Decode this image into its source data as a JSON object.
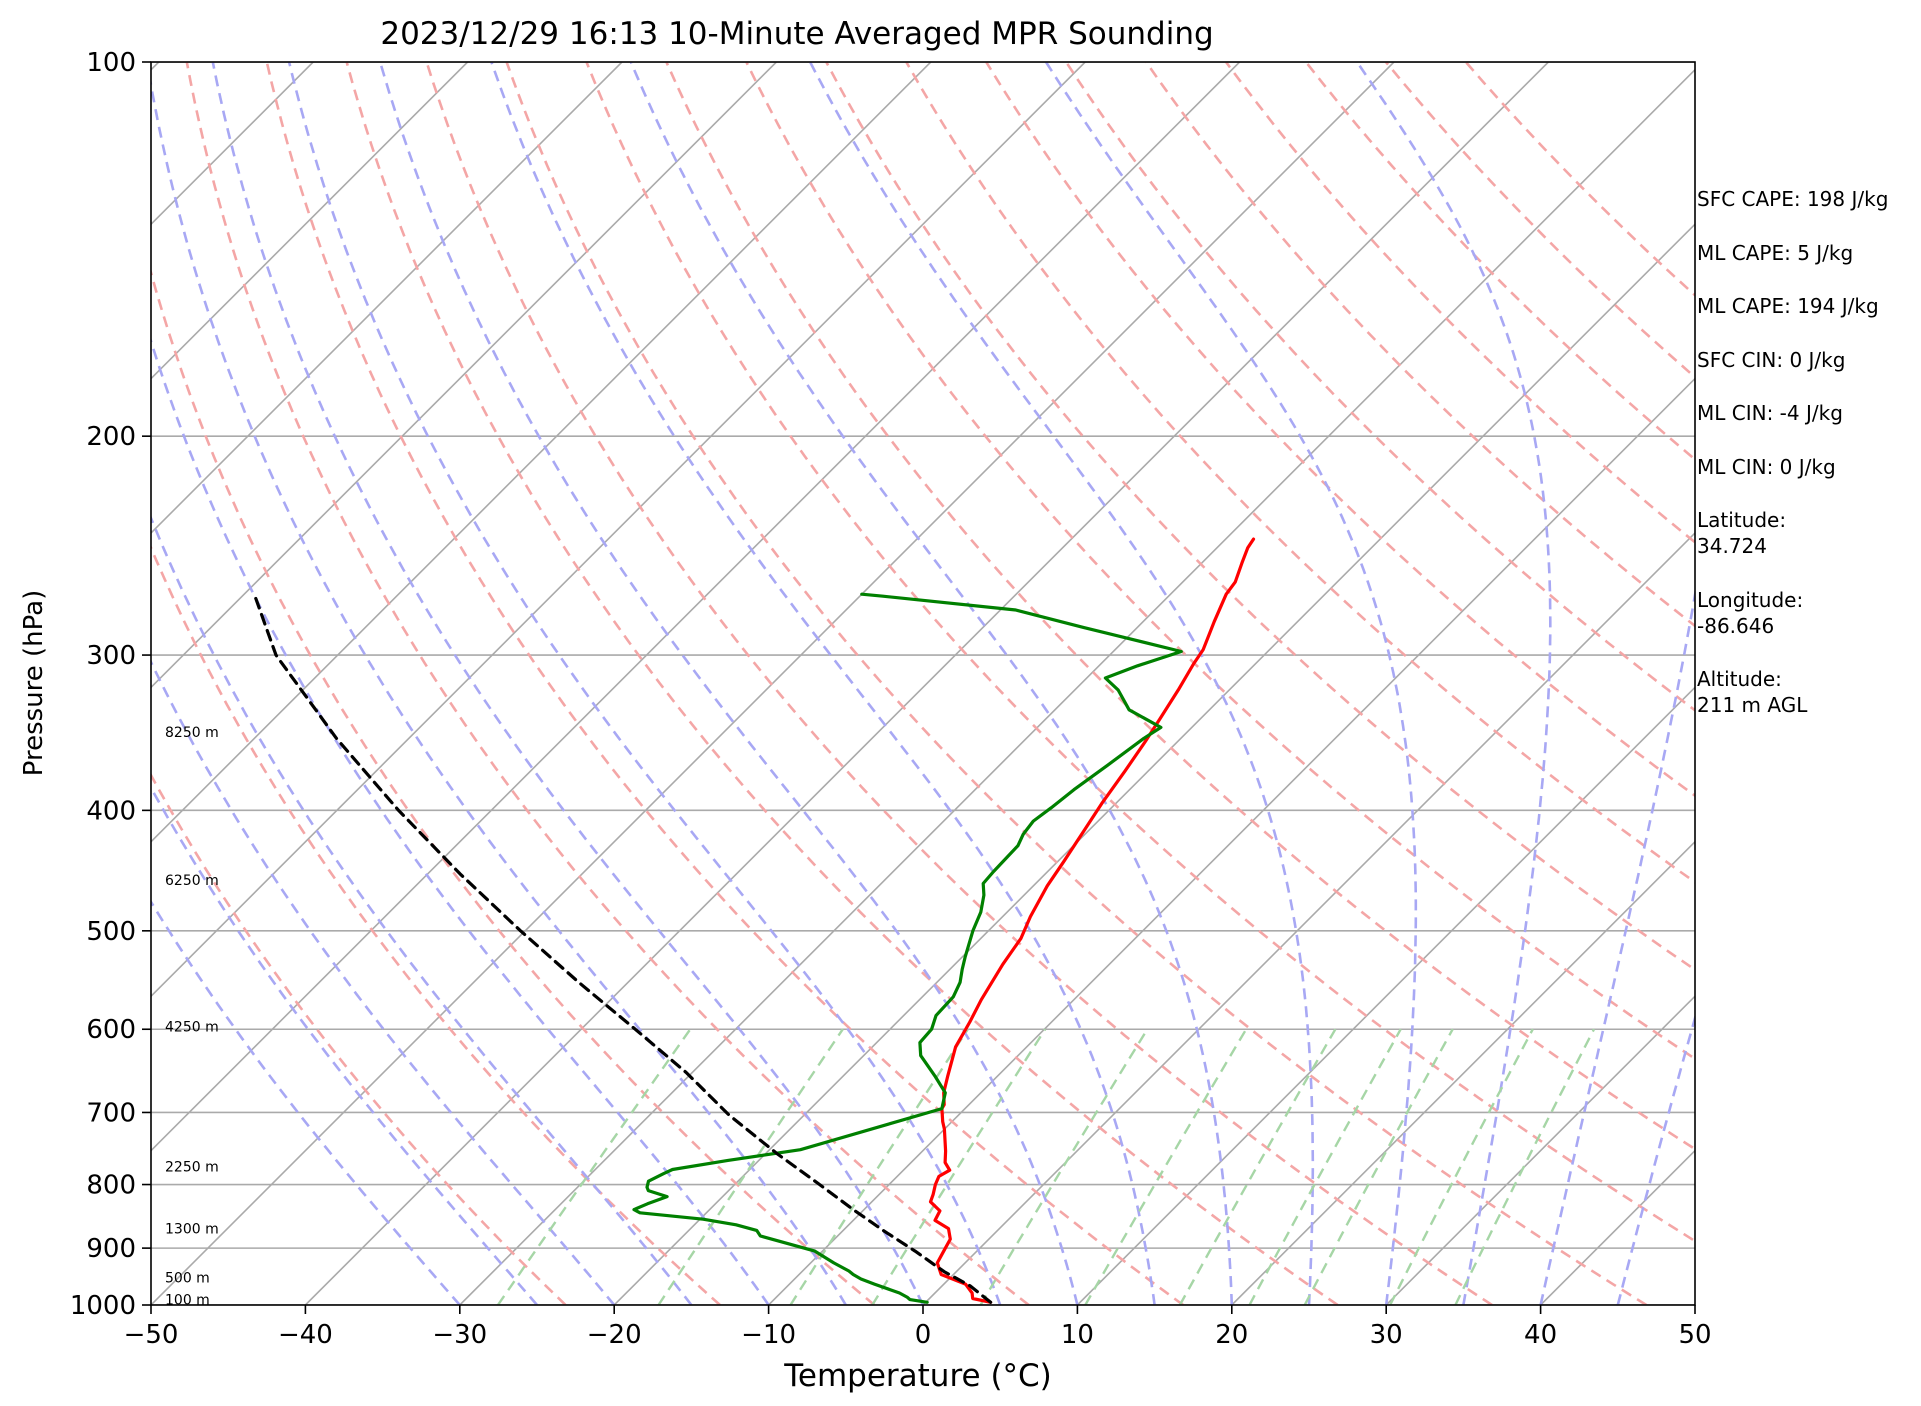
{
  "chart_data": {
    "type": "line",
    "title": "2023/12/29 16:13 10-Minute Averaged MPR Sounding",
    "xlabel": "Temperature (°C)",
    "ylabel": "Pressure (hPa)",
    "xlim": [
      -50,
      50
    ],
    "ylim_pressure_hpa": [
      1000,
      100
    ],
    "y_scale": "log",
    "skew": "skew-T",
    "grid": true,
    "x_ticks": [
      -50,
      -40,
      -30,
      -20,
      -10,
      0,
      10,
      20,
      30,
      40,
      50
    ],
    "x_tick_labels": [
      "−50",
      "−40",
      "−30",
      "−20",
      "−10",
      "0",
      "10",
      "20",
      "30",
      "40",
      "50"
    ],
    "y_ticks": [
      1000,
      900,
      800,
      700,
      600,
      500,
      400,
      300,
      200,
      100
    ],
    "y_tick_labels": [
      "1000",
      "900",
      "800",
      "700",
      "600",
      "500",
      "400",
      "300",
      "200",
      "100"
    ],
    "height_labels": [
      {
        "text": "100 m",
        "p": 990
      },
      {
        "text": "500 m",
        "p": 950
      },
      {
        "text": "1300 m",
        "p": 868
      },
      {
        "text": "2250 m",
        "p": 774
      },
      {
        "text": "4250 m",
        "p": 597
      },
      {
        "text": "6250 m",
        "p": 455
      },
      {
        "text": "8250 m",
        "p": 346
      }
    ],
    "background_lines": {
      "isotherm_color": "#aaaaaa",
      "dry_adiabat_color": "#f4a6a6",
      "moist_adiabat_color": "#a8a8f4",
      "mixing_ratio_color": "#a6d6a6",
      "dry_adiabat_theta_K": [
        250,
        260,
        270,
        280,
        290,
        300,
        310,
        320,
        330,
        340,
        350,
        360,
        370,
        380,
        390,
        400,
        410,
        420,
        430,
        440
      ],
      "moist_adiabat_start_C": [
        -30,
        -25,
        -20,
        -15,
        -10,
        -5,
        0,
        5,
        10,
        15,
        20,
        25,
        30,
        35,
        40,
        45
      ],
      "mixing_ratio_gkg": [
        0.4,
        1,
        2,
        3,
        5,
        8,
        12,
        16,
        20,
        28,
        36
      ]
    },
    "series": [
      {
        "color": "#ff0000",
        "points": [
          [
            4.2,
            995
          ],
          [
            2.8,
            988
          ],
          [
            2.4,
            978
          ],
          [
            1.4,
            962
          ],
          [
            -0.8,
            945
          ],
          [
            -1.8,
            925
          ],
          [
            -2.2,
            902
          ],
          [
            -2.5,
            885
          ],
          [
            -3.3,
            868
          ],
          [
            -4.7,
            855
          ],
          [
            -5.0,
            840
          ],
          [
            -6.2,
            826
          ],
          [
            -6.5,
            815
          ],
          [
            -7.0,
            800
          ],
          [
            -7.3,
            788
          ],
          [
            -7.0,
            779
          ],
          [
            -7.8,
            768
          ],
          [
            -8.5,
            752
          ],
          [
            -10.0,
            722
          ],
          [
            -10.6,
            712
          ],
          [
            -11.5,
            695
          ],
          [
            -11.6,
            690
          ],
          [
            -12.4,
            675
          ],
          [
            -13.2,
            655
          ],
          [
            -14.6,
            620
          ],
          [
            -15.3,
            592
          ],
          [
            -16.0,
            568
          ],
          [
            -16.9,
            532
          ],
          [
            -17.4,
            507
          ],
          [
            -18.2,
            487
          ],
          [
            -19.1,
            460
          ],
          [
            -19.6,
            440
          ],
          [
            -20.3,
            415
          ],
          [
            -20.9,
            395
          ],
          [
            -21.5,
            372
          ],
          [
            -22.1,
            352
          ],
          [
            -22.6,
            338
          ],
          [
            -23.3,
            320
          ],
          [
            -24.0,
            305
          ],
          [
            -24.3,
            297
          ],
          [
            -25.4,
            282
          ],
          [
            -26.4,
            268
          ],
          [
            -26.6,
            262
          ],
          [
            -27.4,
            253
          ],
          [
            -28.0,
            246
          ],
          [
            -28.2,
            242
          ]
        ]
      },
      {
        "color": "#008000",
        "points": [
          [
            0.1,
            995
          ],
          [
            -1.2,
            990
          ],
          [
            -1.5,
            986
          ],
          [
            -2.3,
            978
          ],
          [
            -4.5,
            962
          ],
          [
            -5.7,
            953
          ],
          [
            -6.5,
            945
          ],
          [
            -7.0,
            939
          ],
          [
            -8.5,
            925
          ],
          [
            -10.5,
            905
          ],
          [
            -15.0,
            880
          ],
          [
            -15.6,
            871
          ],
          [
            -17.3,
            862
          ],
          [
            -19.8,
            853
          ],
          [
            -24.3,
            843
          ],
          [
            -24.9,
            838
          ],
          [
            -24.4,
            829
          ],
          [
            -23.6,
            818
          ],
          [
            -25.2,
            809
          ],
          [
            -25.5,
            804
          ],
          [
            -25.8,
            795
          ],
          [
            -25.3,
            784
          ],
          [
            -25.0,
            778
          ],
          [
            -22.0,
            765
          ],
          [
            -18.0,
            750
          ],
          [
            -11.5,
            695
          ],
          [
            -11.7,
            690
          ],
          [
            -12.3,
            675
          ],
          [
            -14.0,
            655
          ],
          [
            -16.3,
            630
          ],
          [
            -17.2,
            615
          ],
          [
            -17.3,
            600
          ],
          [
            -17.9,
            585
          ],
          [
            -18.0,
            565
          ],
          [
            -18.5,
            550
          ],
          [
            -19.2,
            537
          ],
          [
            -19.8,
            525
          ],
          [
            -21.0,
            500
          ],
          [
            -21.7,
            483
          ],
          [
            -22.6,
            468
          ],
          [
            -23.4,
            458
          ],
          [
            -23.5,
            448
          ],
          [
            -23.6,
            427
          ],
          [
            -24.0,
            418
          ],
          [
            -24.2,
            408
          ],
          [
            -23.9,
            398
          ],
          [
            -23.6,
            385
          ],
          [
            -23.0,
            368
          ],
          [
            -22.4,
            350
          ],
          [
            -22.0,
            343
          ],
          [
            -25.2,
            332
          ],
          [
            -27.2,
            320
          ],
          [
            -28.8,
            313
          ],
          [
            -27.5,
            306
          ],
          [
            -25.6,
            298
          ],
          [
            -33.5,
            285
          ],
          [
            -39.0,
            276
          ],
          [
            -48.5,
            269
          ],
          [
            -50.0,
            268
          ]
        ]
      },
      {
        "color": "#000000",
        "dashed": true,
        "points": [
          [
            4.2,
            995
          ],
          [
            1.8,
            965
          ],
          [
            -0.8,
            940
          ],
          [
            -4.0,
            905
          ],
          [
            -7.3,
            872
          ],
          [
            -10.6,
            839
          ],
          [
            -14.6,
            799
          ],
          [
            -19.2,
            756
          ],
          [
            -24.9,
            703
          ],
          [
            -30.4,
            650
          ],
          [
            -36.5,
            600
          ],
          [
            -43.2,
            550
          ],
          [
            -50.3,
            500
          ],
          [
            -57.9,
            450
          ],
          [
            -66.0,
            400
          ],
          [
            -74.7,
            350
          ],
          [
            -84.0,
            300
          ],
          [
            -89.0,
            270
          ]
        ]
      }
    ]
  },
  "stats": {
    "sfc_cape": "SFC CAPE: 198 J/kg",
    "ml_cape_1": "ML CAPE: 5 J/kg",
    "ml_cape_2": "ML CAPE: 194 J/kg",
    "sfc_cin": "SFC CIN: 0 J/kg",
    "ml_cin_1": "ML CIN: -4 J/kg",
    "ml_cin_2": "ML CIN: 0 J/kg",
    "latitude": "Latitude:\n34.724",
    "longitude": "Longitude:\n-86.646",
    "altitude": "Altitude:\n211 m AGL"
  }
}
